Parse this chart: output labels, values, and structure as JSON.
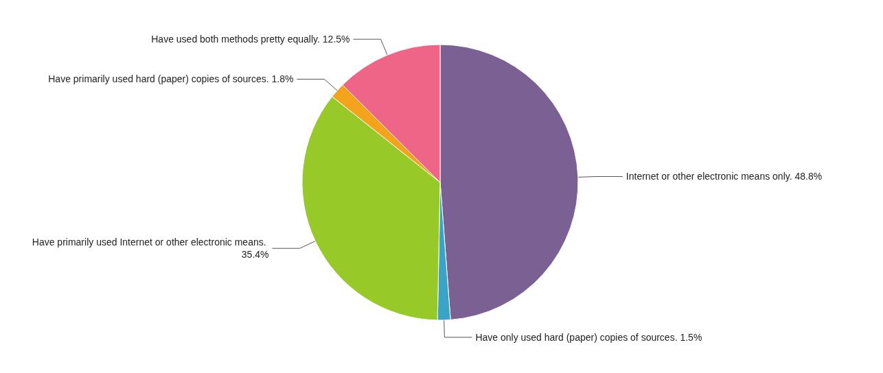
{
  "chart_data": {
    "type": "pie",
    "categories": [
      "Internet or other electronic means only.",
      "Have only used hard (paper) copies of sources.",
      "Have primarily used Internet or other electronic means.",
      "Have primarily used hard (paper) copies of sources.",
      "Have used both methods pretty equally."
    ],
    "values": [
      48.8,
      1.5,
      35.4,
      1.8,
      12.5
    ],
    "value_labels": [
      "48.8%",
      "1.5%",
      "35.4%",
      "1.8%",
      "12.5%"
    ],
    "colors": [
      "#7b6193",
      "#3ba3c5",
      "#97c928",
      "#f5a31d",
      "#ef6587"
    ]
  }
}
